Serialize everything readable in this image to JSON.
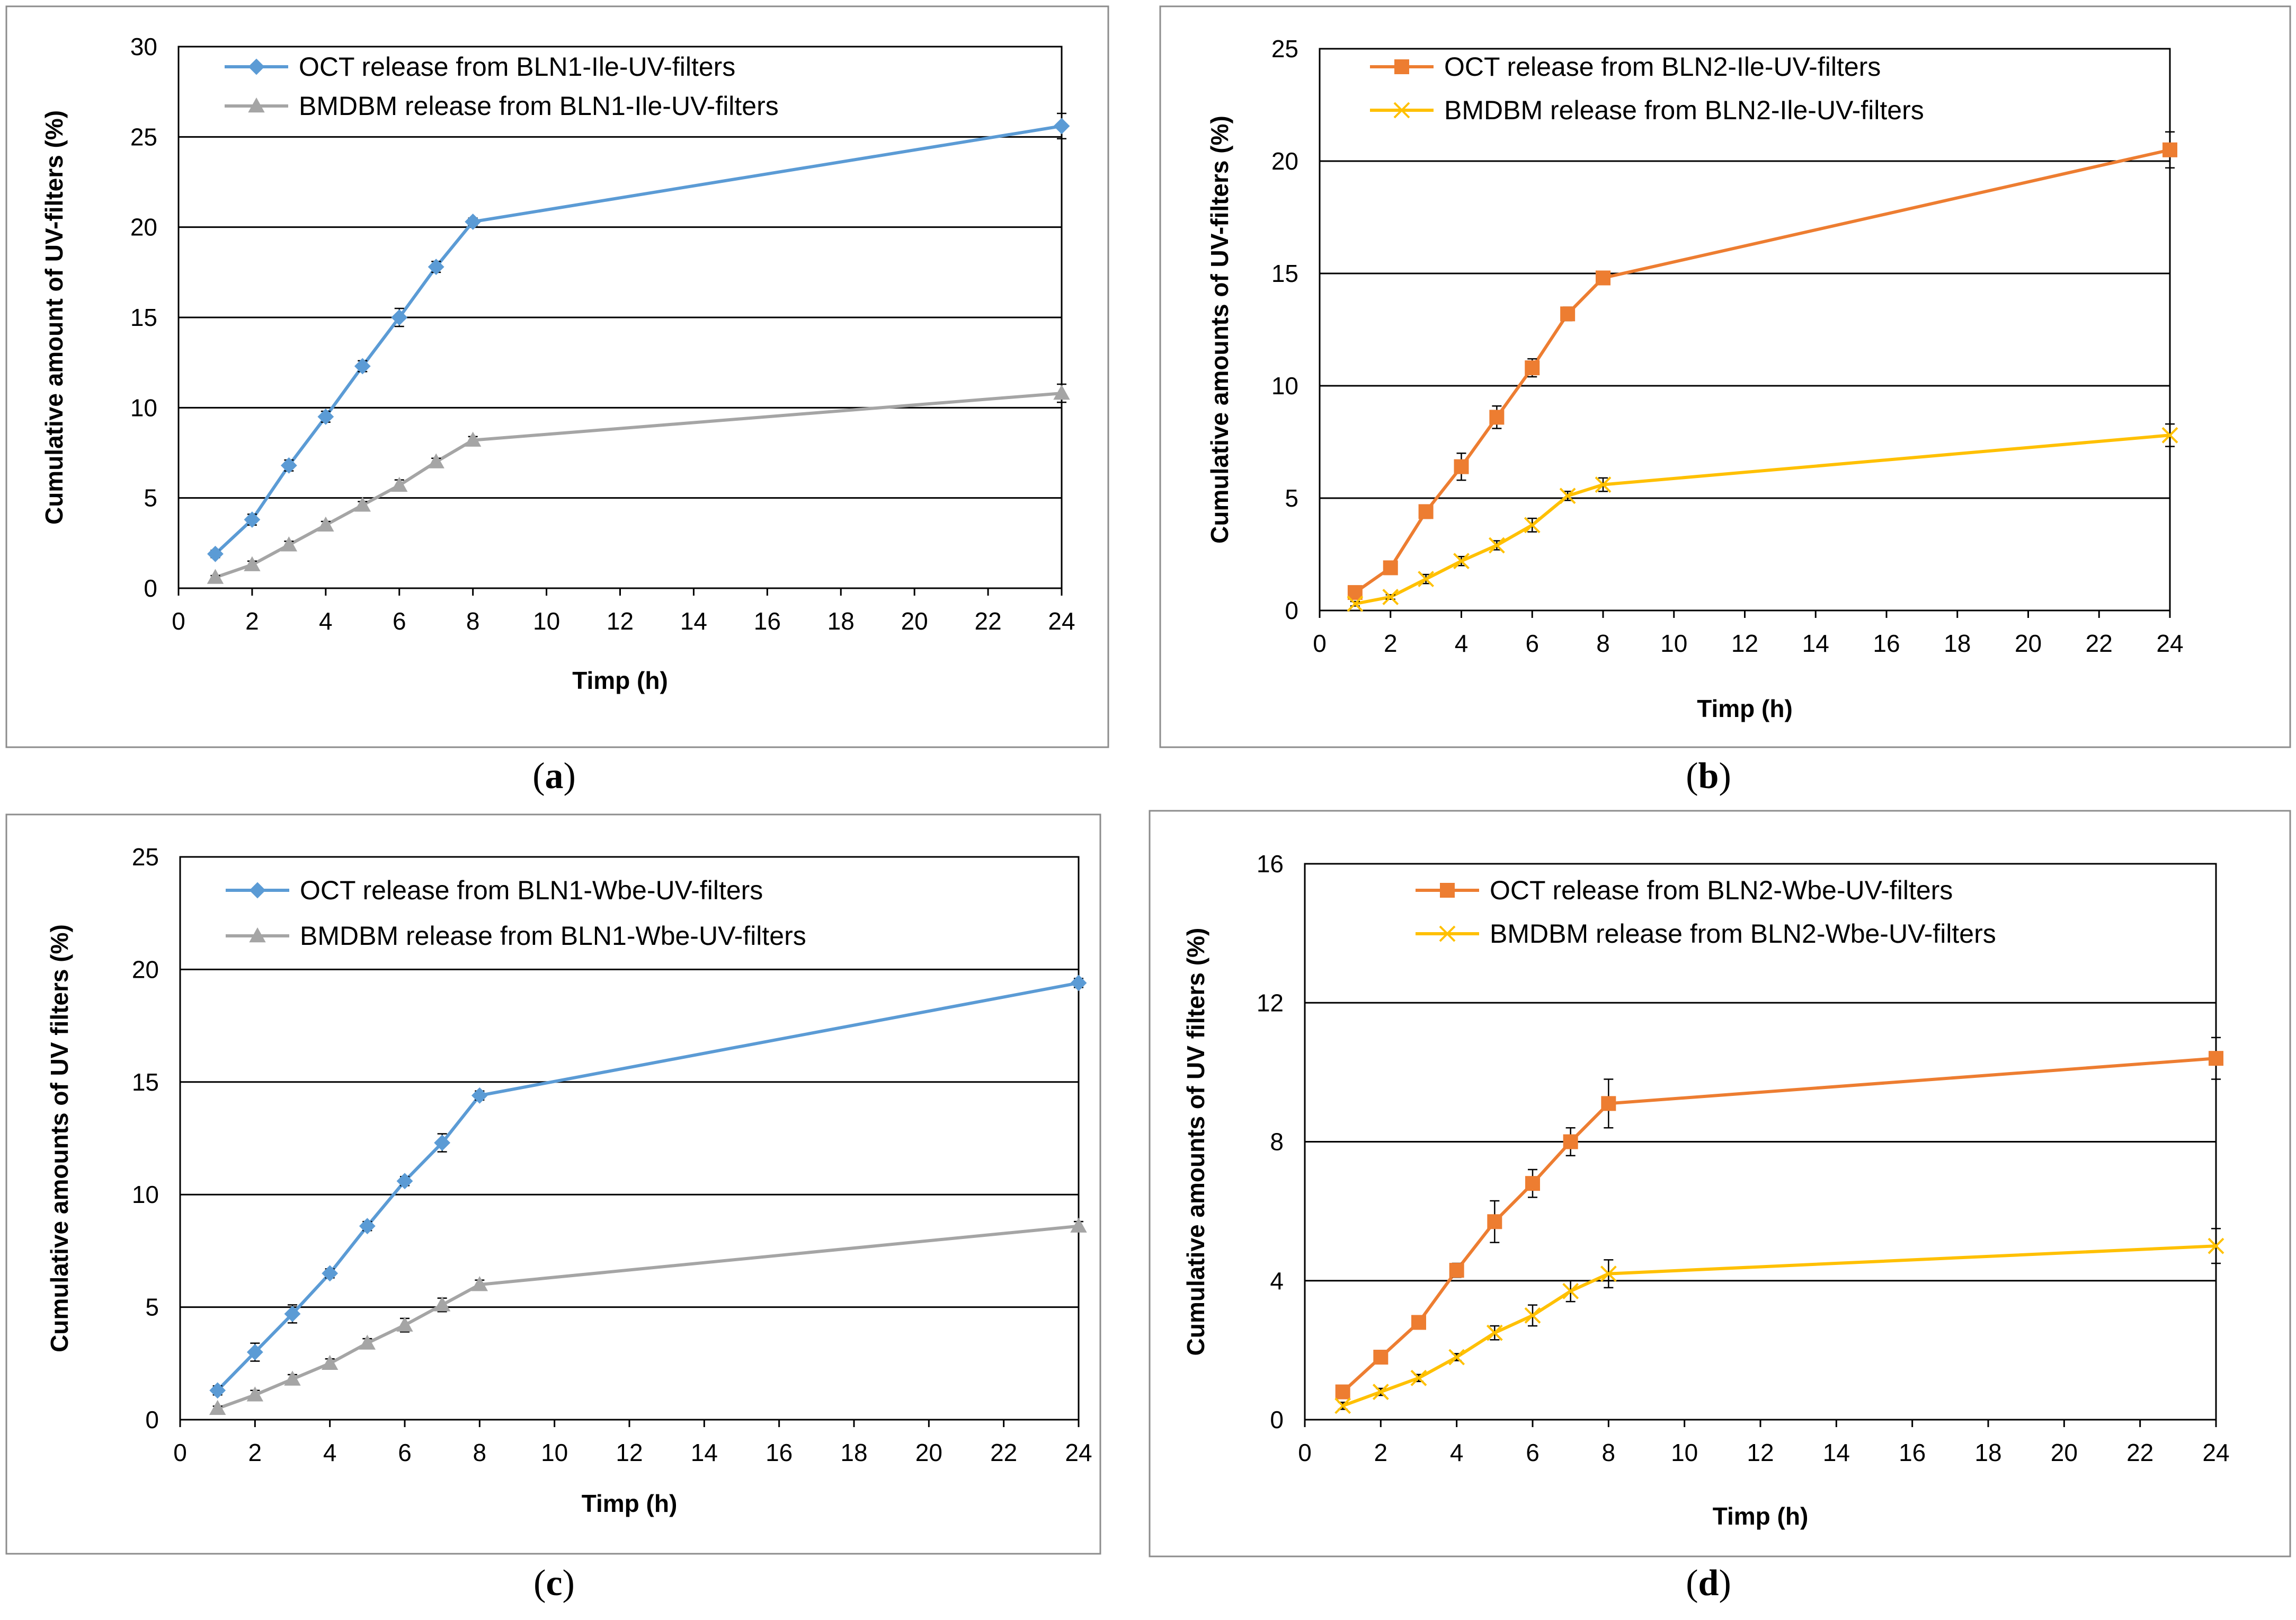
{
  "colors": {
    "blue": "#5b9bd5",
    "gray": "#a5a5a5",
    "orange": "#ed7d31",
    "yellow": "#ffc000"
  },
  "chart_data": [
    {
      "panel": "a",
      "caption": {
        "open": "(",
        "letter": "a",
        "close": ")"
      },
      "type": "line",
      "xlabel": "Timp (h)",
      "ylabel": "Cumulative amount of UV-filters (%)",
      "x_ticks": [
        "0",
        "2",
        "4",
        "6",
        "8",
        "10",
        "12",
        "14",
        "16",
        "18",
        "20",
        "22",
        "24"
      ],
      "y_ticks": [
        "0",
        "5",
        "10",
        "15",
        "20",
        "25",
        "30"
      ],
      "ylim": [
        0,
        30
      ],
      "grid": true,
      "legend": "top-left",
      "series": [
        {
          "name": "OCT release from BLN1-Ile-UV-filters",
          "color": "blue",
          "marker": "diamond",
          "x": [
            1,
            2,
            3,
            4,
            5,
            6,
            7,
            8,
            24
          ],
          "values": [
            1.9,
            3.8,
            6.8,
            9.5,
            12.3,
            15.0,
            17.8,
            20.3,
            25.6
          ],
          "errors": [
            0.2,
            0.3,
            0.3,
            0.3,
            0.3,
            0.5,
            0.3,
            0.2,
            0.7
          ]
        },
        {
          "name": "BMDBM release from BLN1-Ile-UV-filters",
          "color": "gray",
          "marker": "triangle",
          "x": [
            1,
            2,
            3,
            4,
            5,
            6,
            7,
            8,
            24
          ],
          "values": [
            0.6,
            1.3,
            2.4,
            3.5,
            4.6,
            5.7,
            7.0,
            8.2,
            10.8
          ],
          "errors": [
            0.1,
            0.2,
            0.2,
            0.2,
            0.2,
            0.3,
            0.2,
            0.2,
            0.5
          ]
        }
      ]
    },
    {
      "panel": "b",
      "caption": {
        "open": "(",
        "letter": "b",
        "close": ")"
      },
      "type": "line",
      "xlabel": "Timp (h)",
      "ylabel": "Cumulative amounts of UV-filters (%)",
      "x_ticks": [
        "0",
        "2",
        "4",
        "6",
        "8",
        "10",
        "12",
        "14",
        "16",
        "18",
        "20",
        "22",
        "24"
      ],
      "y_ticks": [
        "0",
        "5",
        "10",
        "15",
        "20",
        "25"
      ],
      "ylim": [
        0,
        25
      ],
      "grid": true,
      "legend": "top-left",
      "series": [
        {
          "name": "OCT release from BLN2-Ile-UV-filters",
          "color": "orange",
          "marker": "square",
          "x": [
            1,
            2,
            3,
            4,
            5,
            6,
            7,
            8,
            24
          ],
          "values": [
            0.8,
            1.9,
            4.4,
            6.4,
            8.6,
            10.8,
            13.2,
            14.8,
            20.5
          ],
          "errors": [
            0.2,
            0.2,
            0.3,
            0.6,
            0.5,
            0.4,
            0.3,
            0.2,
            0.8
          ]
        },
        {
          "name": "BMDBM release from BLN2-Ile-UV-filters",
          "color": "yellow",
          "marker": "x",
          "x": [
            1,
            2,
            3,
            4,
            5,
            6,
            7,
            8,
            24
          ],
          "values": [
            0.3,
            0.6,
            1.4,
            2.2,
            2.9,
            3.8,
            5.1,
            5.6,
            7.8
          ],
          "errors": [
            0.1,
            0.1,
            0.2,
            0.2,
            0.2,
            0.3,
            0.2,
            0.3,
            0.5
          ]
        }
      ]
    },
    {
      "panel": "c",
      "caption": {
        "open": "(",
        "letter": "c",
        "close": ")"
      },
      "type": "line",
      "xlabel": "Timp (h)",
      "ylabel": "Cumulative amounts of UV filters  (%)",
      "x_ticks": [
        "0",
        "2",
        "4",
        "6",
        "8",
        "10",
        "12",
        "14",
        "16",
        "18",
        "20",
        "22",
        "24"
      ],
      "y_ticks": [
        "0",
        "5",
        "10",
        "15",
        "20",
        "25"
      ],
      "ylim": [
        0,
        25
      ],
      "grid": true,
      "legend": "top-left",
      "series": [
        {
          "name": "OCT release from BLN1-Wbe-UV-filters",
          "color": "blue",
          "marker": "diamond",
          "x": [
            1,
            2,
            3,
            4,
            5,
            6,
            7,
            8,
            24
          ],
          "values": [
            1.3,
            3.0,
            4.7,
            6.5,
            8.6,
            10.6,
            12.3,
            14.4,
            19.4
          ],
          "errors": [
            0.2,
            0.4,
            0.4,
            0.2,
            0.2,
            0.2,
            0.4,
            0.2,
            0.2
          ]
        },
        {
          "name": "BMDBM release from BLN1-Wbe-UV-filters",
          "color": "gray",
          "marker": "triangle",
          "x": [
            1,
            2,
            3,
            4,
            5,
            6,
            7,
            8,
            24
          ],
          "values": [
            0.5,
            1.1,
            1.8,
            2.5,
            3.4,
            4.2,
            5.1,
            6.0,
            8.6
          ],
          "errors": [
            0.1,
            0.2,
            0.2,
            0.2,
            0.2,
            0.3,
            0.3,
            0.2,
            0.2
          ]
        }
      ]
    },
    {
      "panel": "d",
      "caption": {
        "open": "(",
        "letter": "d",
        "close": ")"
      },
      "type": "line",
      "xlabel": "Timp (h)",
      "ylabel": "Cumulative amounts of UV filters  (%)",
      "x_ticks": [
        "0",
        "2",
        "4",
        "6",
        "8",
        "10",
        "12",
        "14",
        "16",
        "18",
        "20",
        "22",
        "24"
      ],
      "y_ticks": [
        "0",
        "4",
        "8",
        "12",
        "16"
      ],
      "ylim": [
        0,
        16
      ],
      "grid": true,
      "legend": "top-center",
      "series": [
        {
          "name": "OCT release from BLN2-Wbe-UV-filters",
          "color": "orange",
          "marker": "square",
          "x": [
            1,
            2,
            3,
            4,
            5,
            6,
            7,
            8,
            24
          ],
          "values": [
            0.8,
            1.8,
            2.8,
            4.3,
            5.7,
            6.8,
            8.0,
            9.1,
            10.4
          ],
          "errors": [
            0.1,
            0.1,
            0.1,
            0.2,
            0.6,
            0.4,
            0.4,
            0.7,
            0.6
          ]
        },
        {
          "name": "BMDBM release from BLN2-Wbe-UV-filters",
          "color": "yellow",
          "marker": "x",
          "x": [
            1,
            2,
            3,
            4,
            5,
            6,
            7,
            8,
            24
          ],
          "values": [
            0.4,
            0.8,
            1.2,
            1.8,
            2.5,
            3.0,
            3.7,
            4.2,
            5.0
          ],
          "errors": [
            0.1,
            0.1,
            0.1,
            0.1,
            0.2,
            0.3,
            0.3,
            0.4,
            0.5
          ]
        }
      ]
    }
  ]
}
